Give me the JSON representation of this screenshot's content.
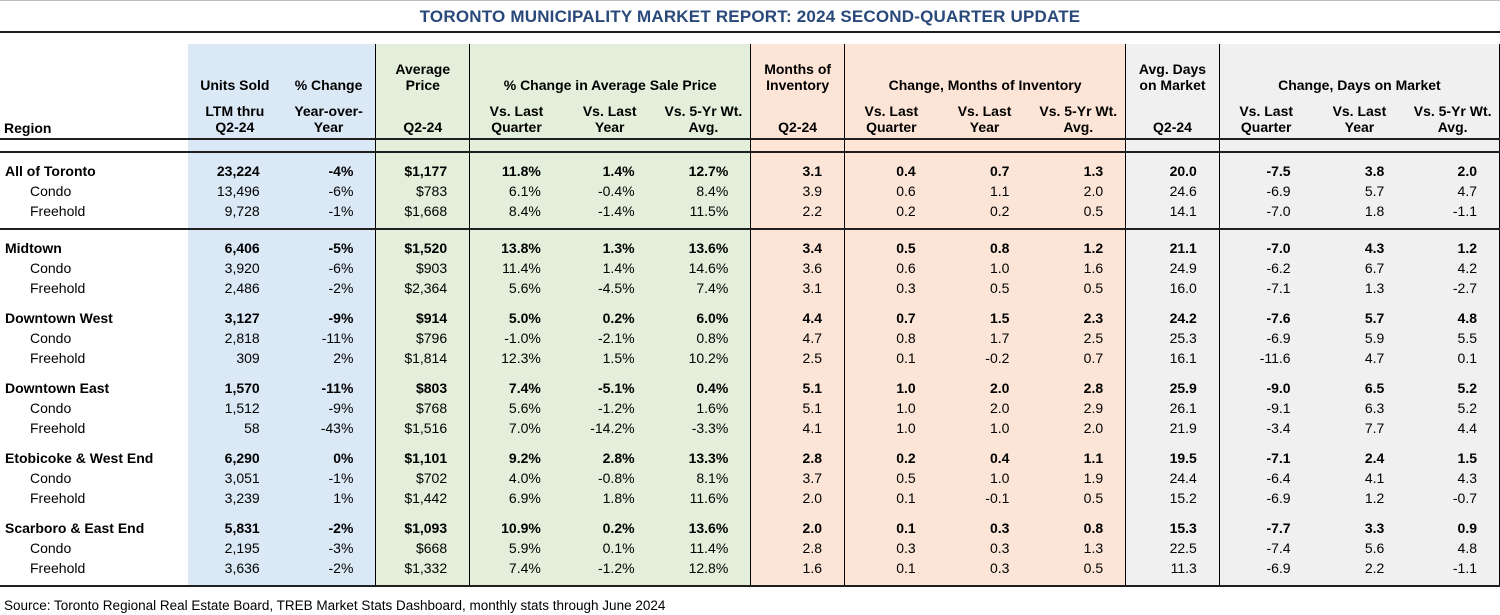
{
  "page": {
    "title": "TORONTO MUNICIPALITY MARKET REPORT: 2024 SECOND-QUARTER UPDATE",
    "source_note": "Source: Toronto Regional Real Estate Board, TREB Market Stats Dashboard, monthly stats through June 2024"
  },
  "colors": {
    "title_text": "#29497a",
    "fill_blue": "#dbe9f6",
    "fill_green": "#e3efda",
    "fill_peach": "#fce5d6",
    "fill_gray": "#f0f0f0",
    "rule_black": "#1f1f1f",
    "border_line": "#000000"
  },
  "header": {
    "region": "Region",
    "units_sold": {
      "title": "Units Sold",
      "sub1": "LTM thru",
      "sub2": "Q2-24"
    },
    "pct_change": {
      "title": "% Change",
      "sub1": "Year-over-",
      "sub2": "Year"
    },
    "avg_price": {
      "title1": "Average",
      "title2": "Price",
      "sub": "Q2-24"
    },
    "pct_change_price_group": "% Change in Average Sale Price",
    "months_inventory": {
      "title1": "Months of",
      "title2": "Inventory",
      "sub": "Q2-24"
    },
    "change_months_group": "Change, Months of Inventory",
    "avg_days": {
      "title1": "Avg. Days",
      "title2": "on Market",
      "sub": "Q2-24"
    },
    "change_days_group": "Change, Days on Market",
    "vs": [
      {
        "l1": "Vs. Last",
        "l2": "Quarter"
      },
      {
        "l1": "Vs. Last",
        "l2": "Year"
      },
      {
        "l1": "Vs. 5-Yr Wt.",
        "l2": "Avg."
      }
    ]
  },
  "chart_data": {
    "type": "table",
    "columns": [
      "Region",
      "Units Sold — LTM thru Q2-24",
      "% Change — Year-over-Year",
      "Average Price — Q2-24",
      "% Change in Average Sale Price — Vs. Last Quarter",
      "% Change in Average Sale Price — Vs. Last Year",
      "% Change in Average Sale Price — Vs. 5-Yr Wt. Avg.",
      "Months of Inventory — Q2-24",
      "Change, Months of Inventory — Vs. Last Quarter",
      "Change, Months of Inventory — Vs. Last Year",
      "Change, Months of Inventory — Vs. 5-Yr Wt. Avg.",
      "Avg. Days on Market — Q2-24",
      "Change, Days on Market — Vs. Last Quarter",
      "Change, Days on Market — Vs. Last Year",
      "Change, Days on Market — Vs. 5-Yr Wt. Avg."
    ],
    "groups": [
      {
        "rule_after": true,
        "rows": [
          {
            "label": "All of Toronto",
            "bold": true,
            "values": [
              "23,224",
              "-4%",
              "$1,177",
              "11.8%",
              "1.4%",
              "12.7%",
              "3.1",
              "0.4",
              "0.7",
              "1.3",
              "20.0",
              "-7.5",
              "3.8",
              "2.0"
            ]
          },
          {
            "label": "Condo",
            "bold": false,
            "values": [
              "13,496",
              "-6%",
              "$783",
              "6.1%",
              "-0.4%",
              "8.4%",
              "3.9",
              "0.6",
              "1.1",
              "2.0",
              "24.6",
              "-6.9",
              "5.7",
              "4.7"
            ]
          },
          {
            "label": "Freehold",
            "bold": false,
            "values": [
              "9,728",
              "-1%",
              "$1,668",
              "8.4%",
              "-1.4%",
              "11.5%",
              "2.2",
              "0.2",
              "0.2",
              "0.5",
              "14.1",
              "-7.0",
              "1.8",
              "-1.1"
            ]
          }
        ]
      },
      {
        "rule_after": false,
        "rows": [
          {
            "label": "Midtown",
            "bold": true,
            "values": [
              "6,406",
              "-5%",
              "$1,520",
              "13.8%",
              "1.3%",
              "13.6%",
              "3.4",
              "0.5",
              "0.8",
              "1.2",
              "21.1",
              "-7.0",
              "4.3",
              "1.2"
            ]
          },
          {
            "label": "Condo",
            "bold": false,
            "values": [
              "3,920",
              "-6%",
              "$903",
              "11.4%",
              "1.4%",
              "14.6%",
              "3.6",
              "0.6",
              "1.0",
              "1.6",
              "24.9",
              "-6.2",
              "6.7",
              "4.2"
            ]
          },
          {
            "label": "Freehold",
            "bold": false,
            "values": [
              "2,486",
              "-2%",
              "$2,364",
              "5.6%",
              "-4.5%",
              "7.4%",
              "3.1",
              "0.3",
              "0.5",
              "0.5",
              "16.0",
              "-7.1",
              "1.3",
              "-2.7"
            ]
          }
        ]
      },
      {
        "rule_after": false,
        "rows": [
          {
            "label": "Downtown West",
            "bold": true,
            "values": [
              "3,127",
              "-9%",
              "$914",
              "5.0%",
              "0.2%",
              "6.0%",
              "4.4",
              "0.7",
              "1.5",
              "2.3",
              "24.2",
              "-7.6",
              "5.7",
              "4.8"
            ]
          },
          {
            "label": "Condo",
            "bold": false,
            "values": [
              "2,818",
              "-11%",
              "$796",
              "-1.0%",
              "-2.1%",
              "0.8%",
              "4.7",
              "0.8",
              "1.7",
              "2.5",
              "25.3",
              "-6.9",
              "5.9",
              "5.5"
            ]
          },
          {
            "label": "Freehold",
            "bold": false,
            "values": [
              "309",
              "2%",
              "$1,814",
              "12.3%",
              "1.5%",
              "10.2%",
              "2.5",
              "0.1",
              "-0.2",
              "0.7",
              "16.1",
              "-11.6",
              "4.7",
              "0.1"
            ]
          }
        ]
      },
      {
        "rule_after": false,
        "rows": [
          {
            "label": "Downtown East",
            "bold": true,
            "values": [
              "1,570",
              "-11%",
              "$803",
              "7.4%",
              "-5.1%",
              "0.4%",
              "5.1",
              "1.0",
              "2.0",
              "2.8",
              "25.9",
              "-9.0",
              "6.5",
              "5.2"
            ]
          },
          {
            "label": "Condo",
            "bold": false,
            "values": [
              "1,512",
              "-9%",
              "$768",
              "5.6%",
              "-1.2%",
              "1.6%",
              "5.1",
              "1.0",
              "2.0",
              "2.9",
              "26.1",
              "-9.1",
              "6.3",
              "5.2"
            ]
          },
          {
            "label": "Freehold",
            "bold": false,
            "values": [
              "58",
              "-43%",
              "$1,516",
              "7.0%",
              "-14.2%",
              "-3.3%",
              "4.1",
              "1.0",
              "1.0",
              "2.0",
              "21.9",
              "-3.4",
              "7.7",
              "4.4"
            ]
          }
        ]
      },
      {
        "rule_after": false,
        "rows": [
          {
            "label": "Etobicoke & West End",
            "bold": true,
            "values": [
              "6,290",
              "0%",
              "$1,101",
              "9.2%",
              "2.8%",
              "13.3%",
              "2.8",
              "0.2",
              "0.4",
              "1.1",
              "19.5",
              "-7.1",
              "2.4",
              "1.5"
            ]
          },
          {
            "label": "Condo",
            "bold": false,
            "values": [
              "3,051",
              "-1%",
              "$702",
              "4.0%",
              "-0.8%",
              "8.1%",
              "3.7",
              "0.5",
              "1.0",
              "1.9",
              "24.4",
              "-6.4",
              "4.1",
              "4.3"
            ]
          },
          {
            "label": "Freehold",
            "bold": false,
            "values": [
              "3,239",
              "1%",
              "$1,442",
              "6.9%",
              "1.8%",
              "11.6%",
              "2.0",
              "0.1",
              "-0.1",
              "0.5",
              "15.2",
              "-6.9",
              "1.2",
              "-0.7"
            ]
          }
        ]
      },
      {
        "rule_after": false,
        "rows": [
          {
            "label": "Scarboro & East End",
            "bold": true,
            "values": [
              "5,831",
              "-2%",
              "$1,093",
              "10.9%",
              "0.2%",
              "13.6%",
              "2.0",
              "0.1",
              "0.3",
              "0.8",
              "15.3",
              "-7.7",
              "3.3",
              "0.9"
            ]
          },
          {
            "label": "Condo",
            "bold": false,
            "values": [
              "2,195",
              "-3%",
              "$668",
              "5.9%",
              "0.1%",
              "11.4%",
              "2.8",
              "0.3",
              "0.3",
              "1.3",
              "22.5",
              "-7.4",
              "5.6",
              "4.8"
            ]
          },
          {
            "label": "Freehold",
            "bold": false,
            "values": [
              "3,636",
              "-2%",
              "$1,332",
              "7.4%",
              "-1.2%",
              "12.8%",
              "1.6",
              "0.1",
              "0.3",
              "0.5",
              "11.3",
              "-6.9",
              "2.2",
              "-1.1"
            ]
          }
        ]
      }
    ]
  }
}
